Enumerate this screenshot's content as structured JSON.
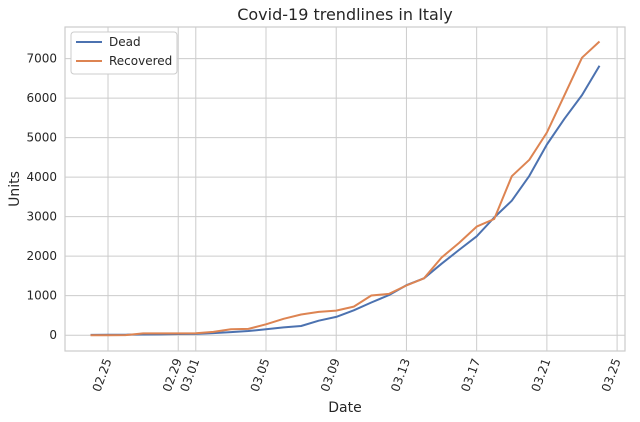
{
  "chart_data": {
    "type": "line",
    "title": "Covid-19 trendlines in Italy",
    "xlabel": "Date",
    "ylabel": "Units",
    "x": [
      "02.24",
      "02.25",
      "02.26",
      "02.27",
      "02.28",
      "02.29",
      "03.01",
      "03.02",
      "03.03",
      "03.04",
      "03.05",
      "03.06",
      "03.07",
      "03.08",
      "03.09",
      "03.10",
      "03.11",
      "03.12",
      "03.13",
      "03.14",
      "03.15",
      "03.16",
      "03.17",
      "03.18",
      "03.19",
      "03.20",
      "03.21",
      "03.22",
      "03.23",
      "03.24"
    ],
    "x_ticks": [
      "02.25",
      "02.29",
      "03.01",
      "03.05",
      "03.09",
      "03.13",
      "03.17",
      "03.21",
      "03.25"
    ],
    "x_tick_rotation": 70,
    "ylim": [
      -400,
      7800
    ],
    "y_ticks": [
      0,
      1000,
      2000,
      3000,
      4000,
      5000,
      6000,
      7000
    ],
    "grid": true,
    "legend_position": "top-left",
    "series": [
      {
        "name": "Dead",
        "color": "#4c72b0",
        "values": [
          7,
          10,
          12,
          17,
          21,
          29,
          34,
          52,
          79,
          107,
          148,
          197,
          233,
          366,
          463,
          631,
          827,
          1016,
          1266,
          1441,
          1809,
          2158,
          2503,
          2978,
          3405,
          4032,
          4825,
          5476,
          6077,
          6820
        ]
      },
      {
        "name": "Recovered",
        "color": "#dd8452",
        "values": [
          1,
          1,
          3,
          45,
          46,
          46,
          50,
          83,
          149,
          160,
          276,
          414,
          523,
          589,
          622,
          724,
          1004,
          1045,
          1258,
          1439,
          1966,
          2335,
          2749,
          2941,
          4025,
          4440,
          5129,
          6072,
          7024,
          7432
        ]
      }
    ]
  }
}
